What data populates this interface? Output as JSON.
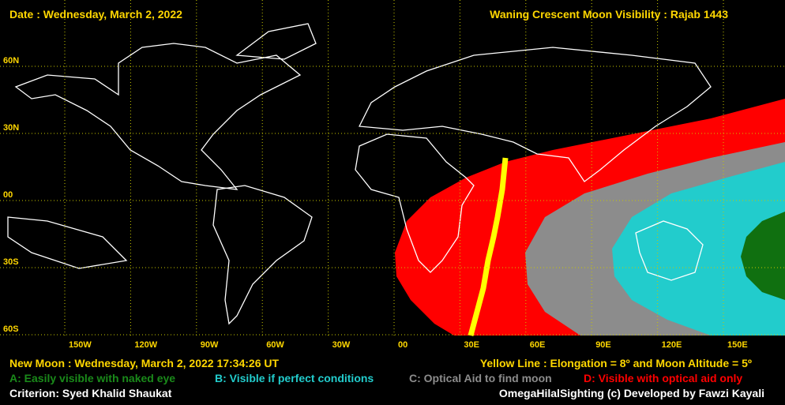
{
  "header": {
    "date": "Date : Wednesday, March 2, 2022",
    "title": "Waning Crescent Moon Visibility : Rajab 1443"
  },
  "latitude_labels": [
    "60N",
    "30N",
    "00",
    "30S",
    "60S"
  ],
  "longitude_labels": [
    "150W",
    "120W",
    "90W",
    "60W",
    "30W",
    "00",
    "30E",
    "60E",
    "90E",
    "120E",
    "150E"
  ],
  "new_moon": "New Moon : Wednesday, March 2, 2022  17:34:26  UT",
  "yellow_line": "Yellow Line : Elongation = 8º  and Moon Altitude = 5º",
  "legend": {
    "a": "A: Easily visible with naked eye",
    "b": "B: Visible if perfect conditions",
    "c": "C: Optical Aid to find moon",
    "d": "D: Visible with optical aid only"
  },
  "criterion": "Criterion: Syed Khalid Shaukat",
  "credit": "OmegaHilalSighting  (c)  Developed by Fawzi Kayali"
}
